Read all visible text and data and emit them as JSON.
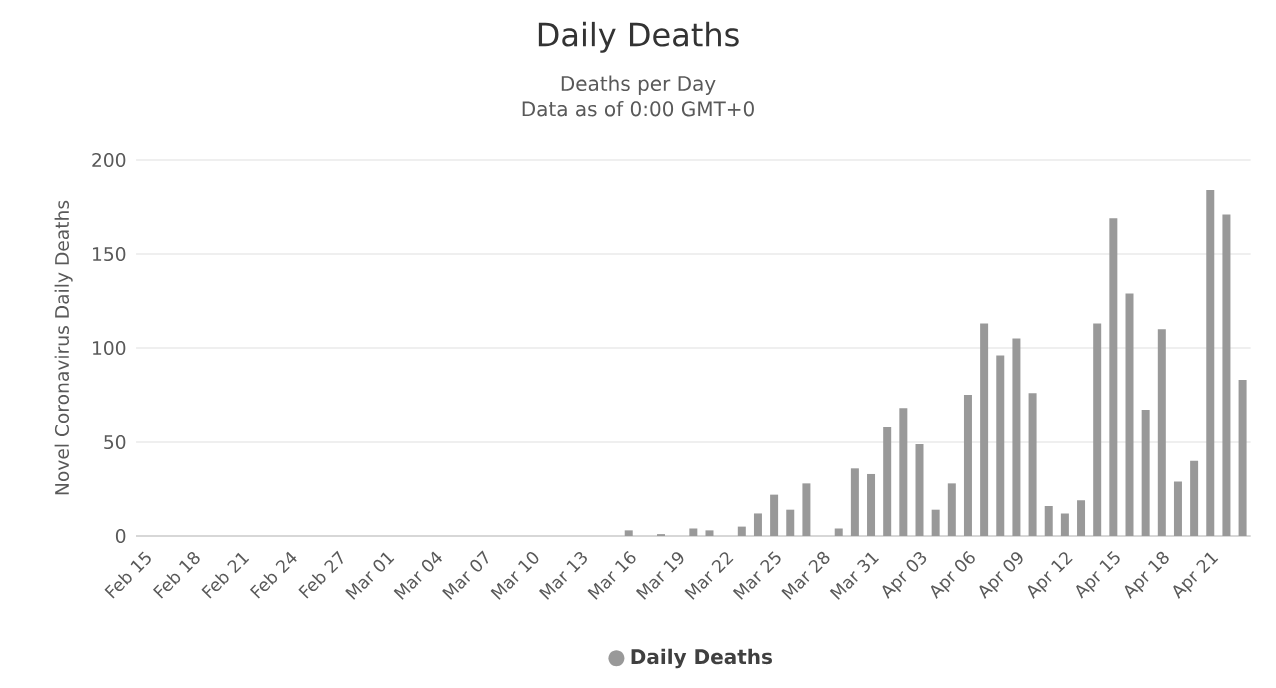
{
  "chart_data": {
    "type": "bar",
    "title": "Daily Deaths",
    "subtitle": "Deaths per Day\nData as of 0:00 GMT+0",
    "ylabel": "Novel Coronavirus Daily Deaths",
    "categories": [
      "Feb 15",
      null,
      null,
      "Feb 18",
      null,
      null,
      "Feb 21",
      null,
      null,
      "Feb 24",
      null,
      null,
      "Feb 27",
      null,
      null,
      "Mar 01",
      null,
      null,
      "Mar 04",
      null,
      null,
      "Mar 07",
      null,
      null,
      "Mar 10",
      null,
      null,
      "Mar 13",
      null,
      null,
      "Mar 16",
      null,
      null,
      "Mar 19",
      null,
      null,
      "Mar 22",
      null,
      null,
      "Mar 25",
      null,
      null,
      "Mar 28",
      null,
      null,
      "Mar 31",
      null,
      null,
      "Apr 03",
      null,
      null,
      "Apr 06",
      null,
      null,
      "Apr 09",
      null,
      null,
      "Apr 12",
      null,
      null,
      "Apr 15",
      null,
      null,
      "Apr 18",
      null,
      null,
      "Apr 21",
      null,
      null
    ],
    "series": [
      {
        "name": "Daily Deaths",
        "color": "#999999",
        "values": [
          0,
          0,
          0,
          0,
          0,
          0,
          0,
          0,
          0,
          0,
          0,
          0,
          0,
          0,
          0,
          0,
          0,
          0,
          0,
          0,
          0,
          0,
          0,
          0,
          0,
          0,
          0,
          0,
          0,
          0,
          3,
          0,
          1,
          0,
          4,
          3,
          0,
          5,
          12,
          22,
          14,
          28,
          0,
          4,
          36,
          33,
          58,
          68,
          49,
          14,
          28,
          75,
          113,
          96,
          105,
          76,
          16,
          12,
          19,
          113,
          169,
          129,
          67,
          110,
          29,
          40,
          184,
          171,
          83
        ]
      }
    ],
    "ylim": [
      0,
      200
    ],
    "yticks": [
      0,
      50,
      100,
      150,
      200
    ],
    "grid": "y",
    "legend": "bottom"
  }
}
